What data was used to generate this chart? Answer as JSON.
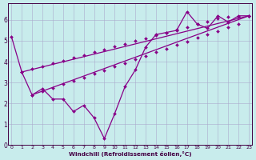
{
  "bg_color": "#c8ecec",
  "grid_color": "#aaaacc",
  "line_color": "#880088",
  "xlabel": "Windchill (Refroidissement éolien,°C)",
  "xlim": [
    -0.3,
    23.3
  ],
  "ylim": [
    0,
    6.8
  ],
  "yticks": [
    0,
    1,
    2,
    3,
    4,
    5,
    6
  ],
  "xticks": [
    0,
    1,
    2,
    3,
    4,
    5,
    6,
    7,
    8,
    9,
    10,
    11,
    12,
    13,
    14,
    15,
    16,
    17,
    18,
    19,
    20,
    21,
    22,
    23
  ],
  "line1_x": [
    0,
    1,
    2,
    3,
    4,
    5,
    6,
    7,
    8,
    9,
    10,
    11,
    12,
    13,
    14,
    15,
    16,
    17,
    18,
    19,
    20,
    21,
    22,
    23
  ],
  "line1_y": [
    5.2,
    3.5,
    2.4,
    2.7,
    2.2,
    2.2,
    1.6,
    1.9,
    1.3,
    0.3,
    1.5,
    2.8,
    3.6,
    4.7,
    5.3,
    5.4,
    5.5,
    6.4,
    5.8,
    5.6,
    6.2,
    5.9,
    6.2,
    6.2
  ],
  "line2_x": [
    2,
    23
  ],
  "line2_y": [
    2.4,
    6.2
  ],
  "line3_x": [
    1,
    23
  ],
  "line3_y": [
    3.5,
    6.2
  ],
  "line2_markers_x": [
    2,
    3,
    4,
    5,
    6,
    7,
    8,
    9,
    10,
    11,
    12,
    13,
    14,
    15,
    16,
    17,
    18,
    19,
    20,
    21,
    22,
    23
  ],
  "line2_markers_y": [
    2.4,
    2.57,
    2.74,
    2.91,
    3.08,
    3.25,
    3.42,
    3.59,
    3.77,
    3.94,
    4.11,
    4.28,
    4.45,
    4.62,
    4.79,
    4.97,
    5.14,
    5.31,
    5.48,
    5.65,
    5.82,
    6.2
  ],
  "line3_markers_x": [
    1,
    2,
    3,
    4,
    5,
    6,
    7,
    8,
    9,
    10,
    11,
    12,
    13,
    14,
    15,
    16,
    17,
    18,
    19,
    20,
    21,
    22,
    23
  ],
  "line3_markers_y": [
    3.5,
    3.64,
    3.77,
    3.91,
    4.04,
    4.18,
    4.32,
    4.45,
    4.59,
    4.72,
    4.86,
    4.99,
    5.13,
    5.26,
    5.4,
    5.53,
    5.67,
    5.8,
    5.94,
    6.07,
    6.14,
    6.17,
    6.2
  ]
}
